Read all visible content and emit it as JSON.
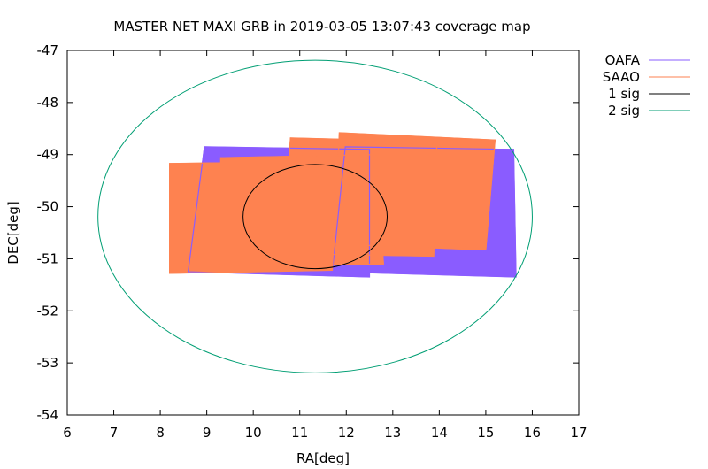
{
  "chart_data": {
    "type": "scatter",
    "title": "MASTER NET MAXI GRB in 2019-03-05 13:07:43 coverage map",
    "xlabel": "RA[deg]",
    "ylabel": "DEC[deg]",
    "xlim": [
      6,
      17
    ],
    "ylim": [
      -54,
      -47
    ],
    "xticks": [
      6,
      7,
      8,
      9,
      10,
      11,
      12,
      13,
      14,
      15,
      16,
      17
    ],
    "yticks": [
      -47,
      -48,
      -49,
      -50,
      -51,
      -52,
      -53,
      -54
    ],
    "grid": false,
    "legend_position": "outside-top-right",
    "series": [
      {
        "name": "OAFA",
        "color": "#8a5cff",
        "fill_color": "#8a5cff",
        "fields": [
          [
            [
              8.95,
              -48.85
            ],
            [
              12.5,
              -48.9
            ],
            [
              12.5,
              -51.35
            ],
            [
              8.6,
              -51.25
            ]
          ],
          [
            [
              11.98,
              -48.85
            ],
            [
              15.6,
              -48.9
            ],
            [
              15.65,
              -51.35
            ],
            [
              11.7,
              -51.25
            ]
          ]
        ]
      },
      {
        "name": "SAAO",
        "color": "#fe8250",
        "fill_color": "#fe8250",
        "fields": [
          [
            [
              8.2,
              -49.17
            ],
            [
              11.8,
              -49.13
            ],
            [
              11.7,
              -51.22
            ],
            [
              8.2,
              -51.28
            ]
          ],
          [
            [
              10.8,
              -48.68
            ],
            [
              13.95,
              -48.75
            ],
            [
              13.88,
              -50.95
            ],
            [
              10.62,
              -50.9
            ]
          ],
          [
            [
              11.85,
              -48.58
            ],
            [
              15.2,
              -48.72
            ],
            [
              15.0,
              -50.83
            ],
            [
              11.75,
              -50.72
            ]
          ],
          [
            [
              9.3,
              -49.06
            ],
            [
              12.65,
              -49.0
            ],
            [
              12.8,
              -51.1
            ],
            [
              9.3,
              -51.16
            ]
          ]
        ]
      },
      {
        "name": "1 sig",
        "color": "#000000",
        "type": "ellipse",
        "center": [
          11.33,
          -50.19
        ],
        "radii": [
          1.55,
          1.0
        ]
      },
      {
        "name": "2 sig",
        "color": "#009e73",
        "type": "ellipse",
        "center": [
          11.33,
          -50.19
        ],
        "radii": [
          4.67,
          3.0
        ]
      }
    ]
  }
}
